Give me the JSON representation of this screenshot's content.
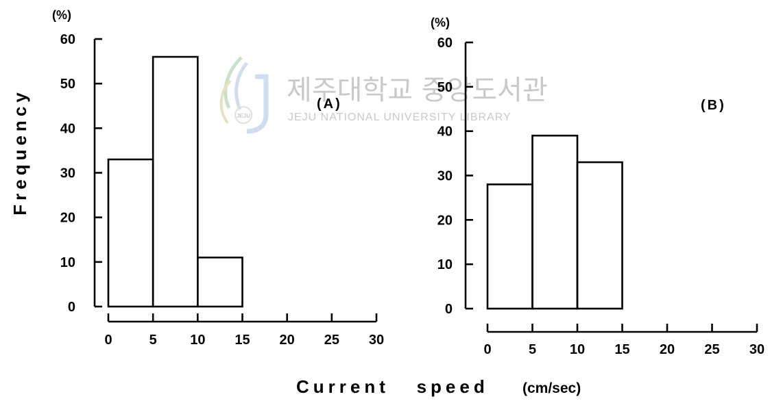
{
  "figure": {
    "ylabel": "Frequency",
    "xlabel": "Current   speed",
    "xunit": "(cm/sec)",
    "yunit": "(%)"
  },
  "watermark": {
    "title_ko": "제주대학교 중앙도서관",
    "title_en": "JEJU NATIONAL UNIVERSITY LIBRARY",
    "logo_text": "JEJU",
    "colors": [
      "#9ec9a0",
      "#a9c3e0",
      "#d6c98f"
    ]
  },
  "chart_data": [
    {
      "type": "bar",
      "panel_label": "(A)",
      "bin_edges": [
        0,
        5,
        10,
        15
      ],
      "values": [
        33,
        56,
        11
      ],
      "xlim": [
        0,
        30
      ],
      "ylim": [
        0,
        60
      ],
      "xticks": [
        0,
        5,
        10,
        15,
        20,
        25,
        30
      ],
      "yticks": [
        0,
        10,
        20,
        30,
        40,
        50,
        60
      ],
      "unit": "(%)",
      "ylabel": "Frequency",
      "xlabel": "Current speed (cm/sec)",
      "grid": false
    },
    {
      "type": "bar",
      "panel_label": "(B)",
      "bin_edges": [
        0,
        5,
        10,
        15
      ],
      "values": [
        28,
        39,
        33
      ],
      "xlim": [
        0,
        30
      ],
      "ylim": [
        0,
        60
      ],
      "xticks": [
        0,
        5,
        10,
        15,
        20,
        25,
        30
      ],
      "yticks": [
        0,
        10,
        20,
        30,
        40,
        50,
        60
      ],
      "unit": "(%)",
      "ylabel": "Frequency",
      "xlabel": "Current speed (cm/sec)",
      "grid": false
    }
  ]
}
